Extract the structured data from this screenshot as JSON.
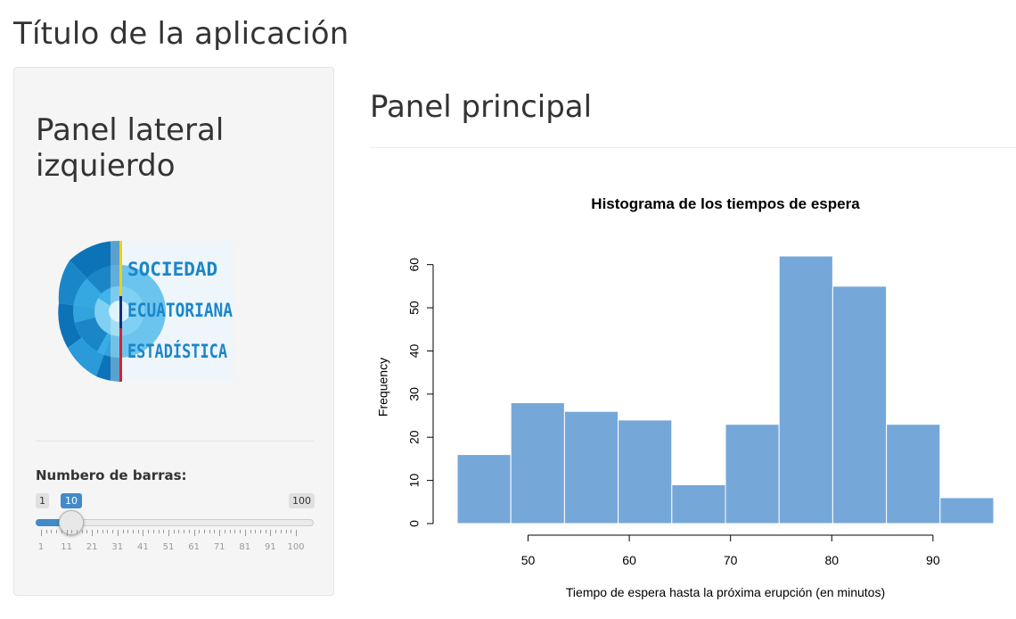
{
  "app": {
    "title": "Título de la aplicación"
  },
  "sidebar": {
    "title": "Panel lateral izquierdo",
    "logo": {
      "lines": [
        "SOCIEDAD",
        "ECUATORIANA",
        "ESTADÍSTICA"
      ],
      "colors": {
        "text": "#1a86c8",
        "blue_dark": "#0d73b8",
        "blue_light": "#3fb3ea",
        "yellow": "#f5d000",
        "navy": "#1b2a7a",
        "red": "#d6232b"
      }
    },
    "slider": {
      "label": "Numbero de barras:",
      "min": "1",
      "max": "100",
      "value": "10",
      "fraction": 0.0909,
      "ticks": [
        "1",
        "11",
        "21",
        "31",
        "41",
        "51",
        "61",
        "71",
        "81",
        "91",
        "100"
      ]
    }
  },
  "main": {
    "title": "Panel principal"
  },
  "chart_data": {
    "type": "bar",
    "title": "Histograma de los tiempos de espera",
    "xlabel": "Tiempo de espera hasta la próxima erupción (en minutos)",
    "ylabel": "Frequency",
    "bins": [
      [
        43,
        48.3
      ],
      [
        48.3,
        53.6
      ],
      [
        53.6,
        58.9
      ],
      [
        58.9,
        64.2
      ],
      [
        64.2,
        69.5
      ],
      [
        69.5,
        74.8
      ],
      [
        74.8,
        80.1
      ],
      [
        80.1,
        85.4
      ],
      [
        85.4,
        90.7
      ],
      [
        90.7,
        96
      ]
    ],
    "values": [
      16,
      28,
      26,
      24,
      9,
      23,
      62,
      55,
      23,
      6
    ],
    "xlim": [
      43,
      96
    ],
    "ylim": [
      0,
      62
    ],
    "x_ticks": [
      50,
      60,
      70,
      80,
      90
    ],
    "y_ticks": [
      0,
      10,
      20,
      30,
      40,
      50,
      60
    ],
    "bar_color": "#75a8d9",
    "grid": false
  }
}
